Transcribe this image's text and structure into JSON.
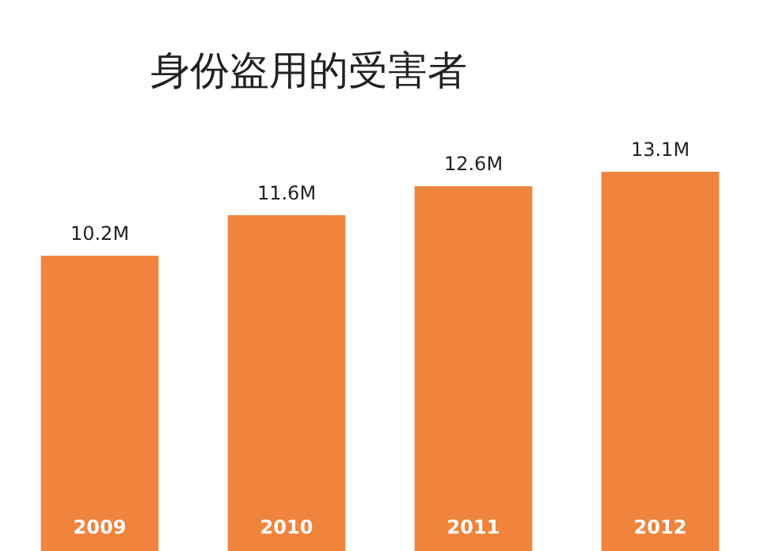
{
  "chart_data": {
    "type": "bar",
    "title": "身份盗用的受害者",
    "categories": [
      "2009",
      "2010",
      "2011",
      "2012"
    ],
    "values": [
      10.2,
      11.6,
      12.6,
      13.1
    ],
    "value_labels": [
      "10.2M",
      "11.6M",
      "12.6M",
      "13.1M"
    ],
    "color": "#f0843c"
  }
}
